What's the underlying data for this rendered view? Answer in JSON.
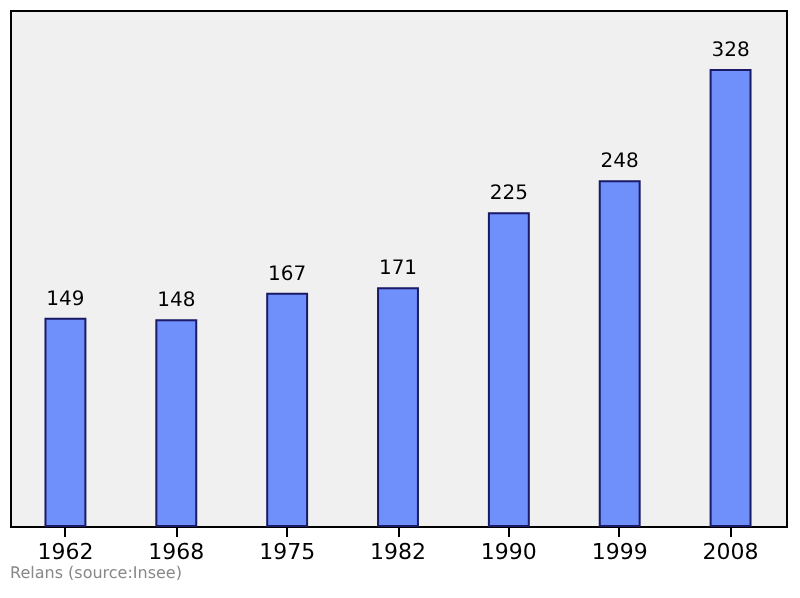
{
  "chart_data": {
    "type": "bar",
    "categories": [
      "1962",
      "1968",
      "1975",
      "1982",
      "1990",
      "1999",
      "2008"
    ],
    "values": [
      149,
      148,
      167,
      171,
      225,
      248,
      328
    ],
    "color": "#6f8ffa",
    "data_labels": true,
    "grid": false,
    "tick_labels": "x",
    "annotations": [
      "Relans    (source:Insee)"
    ]
  }
}
